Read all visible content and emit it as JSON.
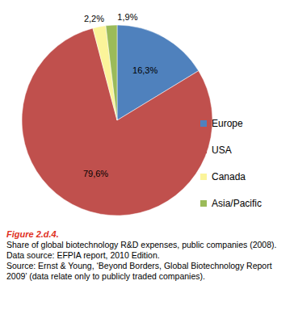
{
  "chart_data": {
    "type": "pie",
    "title": "Figure 2.d.4.",
    "notes": [
      "Share of global biotechnology R&D expenses, public companies (2008). Data source: EFPIA report, 2010 Edition.",
      "Source: Ernst & Young, ‘Beyond Borders, Global Biotechnology Report 2009’ (data relate only to publicly traded companies)."
    ],
    "categories": [
      "Europe",
      "USA",
      "Canada",
      "Asia/Pacific"
    ],
    "values": [
      16.3,
      79.6,
      2.2,
      1.9
    ],
    "value_labels": [
      "16,3%",
      "79,6%",
      "2,2%",
      "1,9%"
    ],
    "colors": [
      "#4f81bd",
      "#c0504d",
      "#fbf49a",
      "#9bbb59"
    ],
    "data_labels": true,
    "legend": "right"
  }
}
